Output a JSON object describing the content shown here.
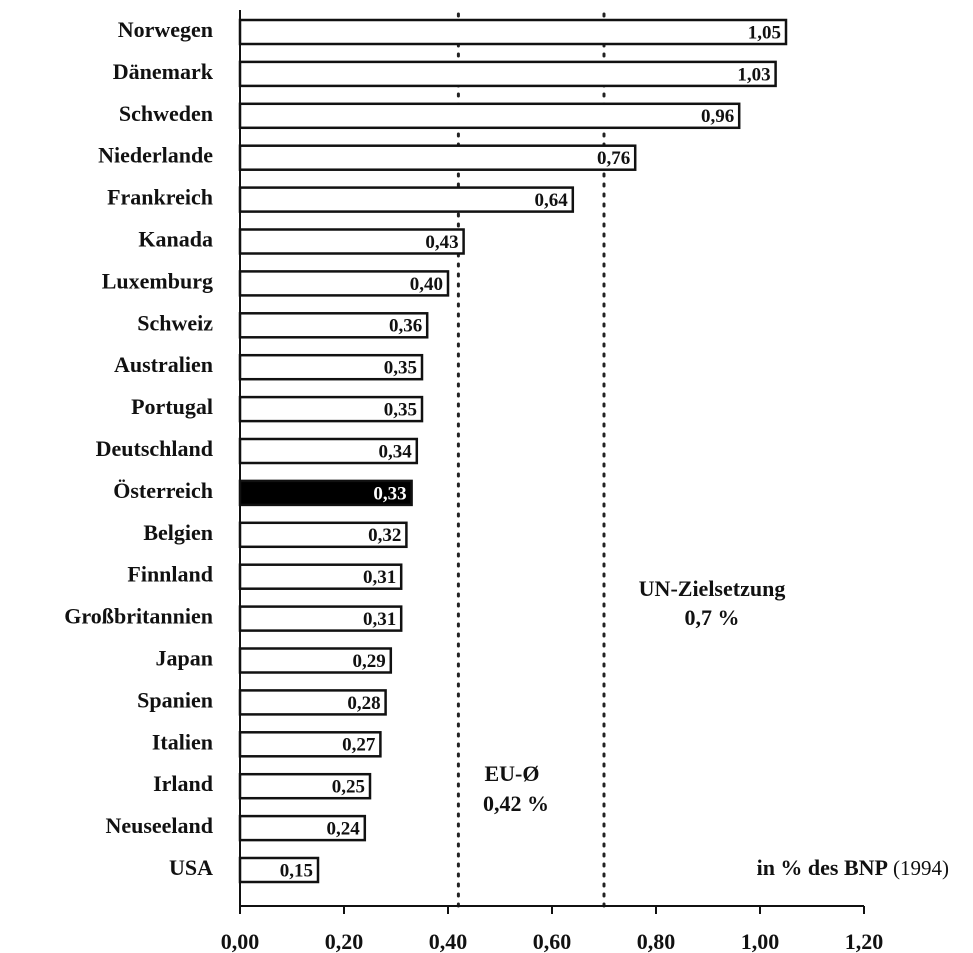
{
  "chart_data": {
    "type": "bar",
    "orientation": "horizontal",
    "categories": [
      "Norwegen",
      "Dänemark",
      "Schweden",
      "Niederlande",
      "Frankreich",
      "Kanada",
      "Luxemburg",
      "Schweiz",
      "Australien",
      "Portugal",
      "Deutschland",
      "Österreich",
      "Belgien",
      "Finnland",
      "Großbritannien",
      "Japan",
      "Spanien",
      "Italien",
      "Irland",
      "Neuseeland",
      "USA"
    ],
    "values": [
      1.05,
      1.03,
      0.96,
      0.76,
      0.64,
      0.43,
      0.4,
      0.36,
      0.35,
      0.35,
      0.34,
      0.33,
      0.32,
      0.31,
      0.31,
      0.29,
      0.28,
      0.27,
      0.25,
      0.24,
      0.15
    ],
    "value_labels": [
      "1,05",
      "1,03",
      "0,96",
      "0,76",
      "0,64",
      "0,43",
      "0,40",
      "0,36",
      "0,35",
      "0,35",
      "0,34",
      "0,33",
      "0,32",
      "0,31",
      "0,31",
      "0,29",
      "0,28",
      "0,27",
      "0,25",
      "0,24",
      "0,15"
    ],
    "color": "#ffffff",
    "highlight": "Österreich",
    "highlight_color": "#000000",
    "xlim": [
      0,
      1.2
    ],
    "xticks": [
      {
        "value": 0,
        "label": "0,00"
      },
      {
        "value": 0.2,
        "label": "0,20"
      },
      {
        "value": 0.4,
        "label": "0,40"
      },
      {
        "value": 0.6,
        "label": "0,60"
      },
      {
        "value": 0.8,
        "label": "0,80"
      },
      {
        "value": 1.0,
        "label": "1,00"
      },
      {
        "value": 1.2,
        "label": "1,20"
      }
    ],
    "reference_lines": [
      {
        "value": 0.42,
        "label": [
          "EU-Ø",
          "0,42 %"
        ]
      },
      {
        "value": 0.7,
        "label": [
          "UN-Zielsetzung",
          "0,7 %"
        ]
      }
    ],
    "note": [
      "in % des BNP",
      "(1994)"
    ]
  }
}
